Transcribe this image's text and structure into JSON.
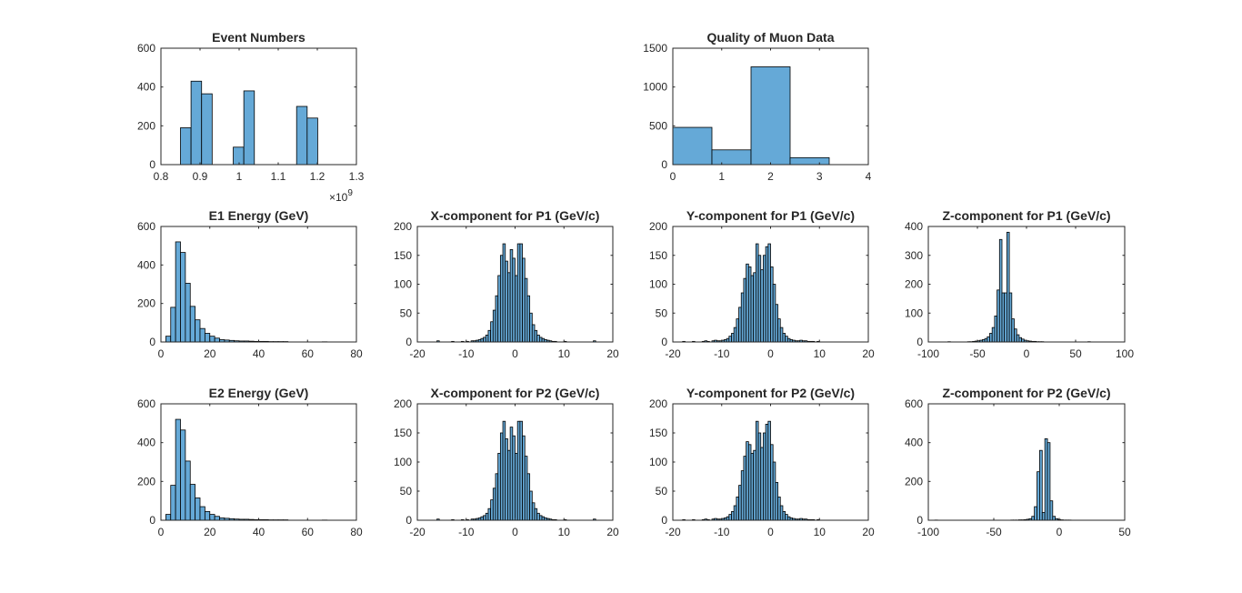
{
  "chart_data": [
    {
      "type": "bar",
      "title": "Event Numbers",
      "xlim": [
        0.8,
        1.3
      ],
      "ylim": [
        0,
        600
      ],
      "xticks": [
        0.8,
        0.9,
        1,
        1.1,
        1.2,
        1.3
      ],
      "xtick_labels": [
        "0.8",
        "0.9",
        "1",
        "1.1",
        "1.2",
        "1.3"
      ],
      "yticks": [
        0,
        200,
        400,
        600
      ],
      "ytick_labels": [
        "0",
        "200",
        "400",
        "600"
      ],
      "x_exponent": {
        "base": "×10",
        "power": "9"
      },
      "bin_start": 0.85,
      "bin_width": 0.027,
      "values": [
        190,
        430,
        365,
        0,
        0,
        90,
        380,
        0,
        0,
        0,
        0,
        300,
        240
      ]
    },
    {
      "type": "bar",
      "title": "Quality of Muon Data",
      "xlim": [
        0,
        4
      ],
      "ylim": [
        0,
        1500
      ],
      "xticks": [
        0,
        1,
        2,
        3,
        4
      ],
      "xtick_labels": [
        "0",
        "1",
        "2",
        "3",
        "4"
      ],
      "yticks": [
        0,
        500,
        1000,
        1500
      ],
      "ytick_labels": [
        "0",
        "500",
        "1000",
        "1500"
      ],
      "bin_start": 0,
      "bin_width": 0.8,
      "values": [
        480,
        190,
        1260,
        90
      ]
    },
    {
      "type": "bar",
      "title": "E1 Energy (GeV)",
      "xlim": [
        0,
        80
      ],
      "ylim": [
        0,
        600
      ],
      "xticks": [
        0,
        20,
        40,
        60,
        80
      ],
      "xtick_labels": [
        "0",
        "20",
        "40",
        "60",
        "80"
      ],
      "yticks": [
        0,
        200,
        400,
        600
      ],
      "ytick_labels": [
        "0",
        "200",
        "400",
        "600"
      ],
      "bin_start": 2,
      "bin_width": 2,
      "values": [
        30,
        180,
        520,
        465,
        305,
        185,
        115,
        70,
        45,
        30,
        20,
        12,
        10,
        8,
        6,
        5,
        5,
        4,
        3,
        3,
        3,
        2,
        2,
        2,
        2,
        0,
        0,
        0,
        0,
        0,
        0,
        0,
        1
      ]
    },
    {
      "type": "bar",
      "title": "X-component for P1 (GeV/c)",
      "xlim": [
        -20,
        20
      ],
      "ylim": [
        0,
        200
      ],
      "xticks": [
        -20,
        -10,
        0,
        10,
        20
      ],
      "xtick_labels": [
        "-20",
        "-10",
        "0",
        "10",
        "20"
      ],
      "yticks": [
        0,
        50,
        100,
        150,
        200
      ],
      "ytick_labels": [
        "0",
        "50",
        "100",
        "150",
        "200"
      ],
      "bin_start": -16,
      "bin_width": 0.5,
      "values": [
        2,
        0,
        0,
        0,
        0,
        0,
        1,
        0,
        0,
        0,
        1,
        0,
        1,
        0,
        2,
        2,
        3,
        4,
        6,
        8,
        12,
        20,
        35,
        55,
        80,
        115,
        150,
        170,
        140,
        120,
        160,
        145,
        115,
        170,
        170,
        145,
        110,
        80,
        50,
        30,
        20,
        12,
        8,
        6,
        4,
        3,
        2,
        1,
        1,
        0,
        0,
        0,
        1,
        0,
        0,
        0,
        0,
        0,
        0,
        0,
        0,
        0,
        0,
        0,
        2
      ]
    },
    {
      "type": "bar",
      "title": "Y-component for P1 (GeV/c)",
      "xlim": [
        -20,
        20
      ],
      "ylim": [
        0,
        200
      ],
      "xticks": [
        -20,
        -10,
        0,
        10,
        20
      ],
      "xtick_labels": [
        "-20",
        "-10",
        "0",
        "10",
        "20"
      ],
      "yticks": [
        0,
        50,
        100,
        150,
        200
      ],
      "ytick_labels": [
        "0",
        "50",
        "100",
        "150",
        "200"
      ],
      "bin_start": -18,
      "bin_width": 0.5,
      "values": [
        1,
        0,
        0,
        0,
        1,
        0,
        0,
        0,
        1,
        2,
        1,
        0,
        2,
        3,
        2,
        2,
        3,
        4,
        6,
        10,
        15,
        25,
        40,
        60,
        85,
        110,
        135,
        130,
        115,
        120,
        170,
        150,
        125,
        150,
        165,
        170,
        130,
        100,
        65,
        40,
        25,
        15,
        10,
        6,
        4,
        3,
        2,
        2,
        3,
        2,
        2,
        1,
        1,
        1,
        0,
        1
      ]
    },
    {
      "type": "bar",
      "title": "Z-component for P1 (GeV/c)",
      "xlim": [
        -100,
        100
      ],
      "ylim": [
        0,
        400
      ],
      "xticks": [
        -100,
        -50,
        0,
        50,
        100
      ],
      "xtick_labels": [
        "-100",
        "-50",
        "0",
        "50",
        "100"
      ],
      "yticks": [
        0,
        100,
        200,
        300,
        400
      ],
      "ytick_labels": [
        "0",
        "100",
        "200",
        "300",
        "400"
      ],
      "bin_start": -80,
      "bin_width": 2.5,
      "values": [
        1,
        0,
        0,
        0,
        0,
        0,
        0,
        0,
        1,
        1,
        2,
        3,
        4,
        6,
        8,
        12,
        18,
        30,
        50,
        90,
        180,
        355,
        170,
        170,
        380,
        170,
        80,
        45,
        25,
        15,
        10,
        6,
        4,
        3,
        2,
        2,
        1,
        1,
        1,
        0,
        0,
        0,
        0,
        0,
        0,
        0,
        0,
        0,
        0,
        0,
        0,
        0,
        0,
        0,
        0,
        0,
        0,
        1
      ]
    },
    {
      "type": "bar",
      "title": "E2 Energy (GeV)",
      "xlim": [
        0,
        80
      ],
      "ylim": [
        0,
        600
      ],
      "xticks": [
        0,
        20,
        40,
        60,
        80
      ],
      "xtick_labels": [
        "0",
        "20",
        "40",
        "60",
        "80"
      ],
      "yticks": [
        0,
        200,
        400,
        600
      ],
      "ytick_labels": [
        "0",
        "200",
        "400",
        "600"
      ],
      "bin_start": 2,
      "bin_width": 2,
      "values": [
        30,
        180,
        520,
        465,
        305,
        185,
        115,
        70,
        45,
        30,
        20,
        12,
        10,
        8,
        6,
        5,
        5,
        4,
        3,
        3,
        3,
        2,
        2,
        2,
        2,
        0,
        0,
        0,
        0,
        0,
        0,
        0,
        1
      ]
    },
    {
      "type": "bar",
      "title": "X-component for P2 (GeV/c)",
      "xlim": [
        -20,
        20
      ],
      "ylim": [
        0,
        200
      ],
      "xticks": [
        -20,
        -10,
        0,
        10,
        20
      ],
      "xtick_labels": [
        "-20",
        "-10",
        "0",
        "10",
        "20"
      ],
      "yticks": [
        0,
        50,
        100,
        150,
        200
      ],
      "ytick_labels": [
        "0",
        "50",
        "100",
        "150",
        "200"
      ],
      "bin_start": -16,
      "bin_width": 0.5,
      "values": [
        2,
        0,
        0,
        0,
        0,
        0,
        1,
        0,
        0,
        0,
        1,
        0,
        1,
        0,
        2,
        2,
        3,
        4,
        6,
        8,
        12,
        20,
        35,
        55,
        80,
        115,
        150,
        170,
        140,
        120,
        160,
        145,
        115,
        170,
        170,
        145,
        110,
        80,
        50,
        30,
        20,
        12,
        8,
        6,
        4,
        3,
        2,
        1,
        1,
        0,
        0,
        0,
        1,
        0,
        0,
        0,
        0,
        0,
        0,
        0,
        0,
        0,
        0,
        0,
        2
      ]
    },
    {
      "type": "bar",
      "title": "Y-component for P2 (GeV/c)",
      "xlim": [
        -20,
        20
      ],
      "ylim": [
        0,
        200
      ],
      "xticks": [
        -20,
        -10,
        0,
        10,
        20
      ],
      "xtick_labels": [
        "-20",
        "-10",
        "0",
        "10",
        "20"
      ],
      "yticks": [
        0,
        50,
        100,
        150,
        200
      ],
      "ytick_labels": [
        "0",
        "50",
        "100",
        "150",
        "200"
      ],
      "bin_start": -18,
      "bin_width": 0.5,
      "values": [
        1,
        0,
        0,
        0,
        1,
        0,
        0,
        0,
        1,
        2,
        1,
        0,
        2,
        3,
        2,
        2,
        3,
        4,
        6,
        10,
        15,
        25,
        40,
        60,
        85,
        110,
        135,
        130,
        115,
        120,
        170,
        150,
        125,
        150,
        165,
        170,
        130,
        100,
        65,
        40,
        25,
        15,
        10,
        6,
        4,
        3,
        2,
        2,
        3,
        2,
        2,
        1,
        1,
        1,
        0,
        1
      ]
    },
    {
      "type": "bar",
      "title": "Z-component for P2 (GeV/c)",
      "xlim": [
        -100,
        50
      ],
      "ylim": [
        0,
        600
      ],
      "xticks": [
        -100,
        -50,
        0,
        50
      ],
      "xtick_labels": [
        "-100",
        "-50",
        "0",
        "50"
      ],
      "yticks": [
        0,
        200,
        400,
        600
      ],
      "ytick_labels": [
        "0",
        "200",
        "400",
        "600"
      ],
      "bin_start": -95,
      "bin_width": 2,
      "values": [
        1,
        0,
        0,
        0,
        0,
        0,
        0,
        0,
        0,
        0,
        0,
        0,
        0,
        0,
        0,
        0,
        0,
        0,
        0,
        0,
        0,
        0,
        0,
        0,
        0,
        0,
        0,
        0,
        0,
        1,
        1,
        1,
        2,
        2,
        3,
        5,
        8,
        20,
        70,
        250,
        360,
        40,
        420,
        400,
        100,
        20,
        8,
        4,
        2,
        1,
        1,
        1,
        0
      ]
    }
  ]
}
